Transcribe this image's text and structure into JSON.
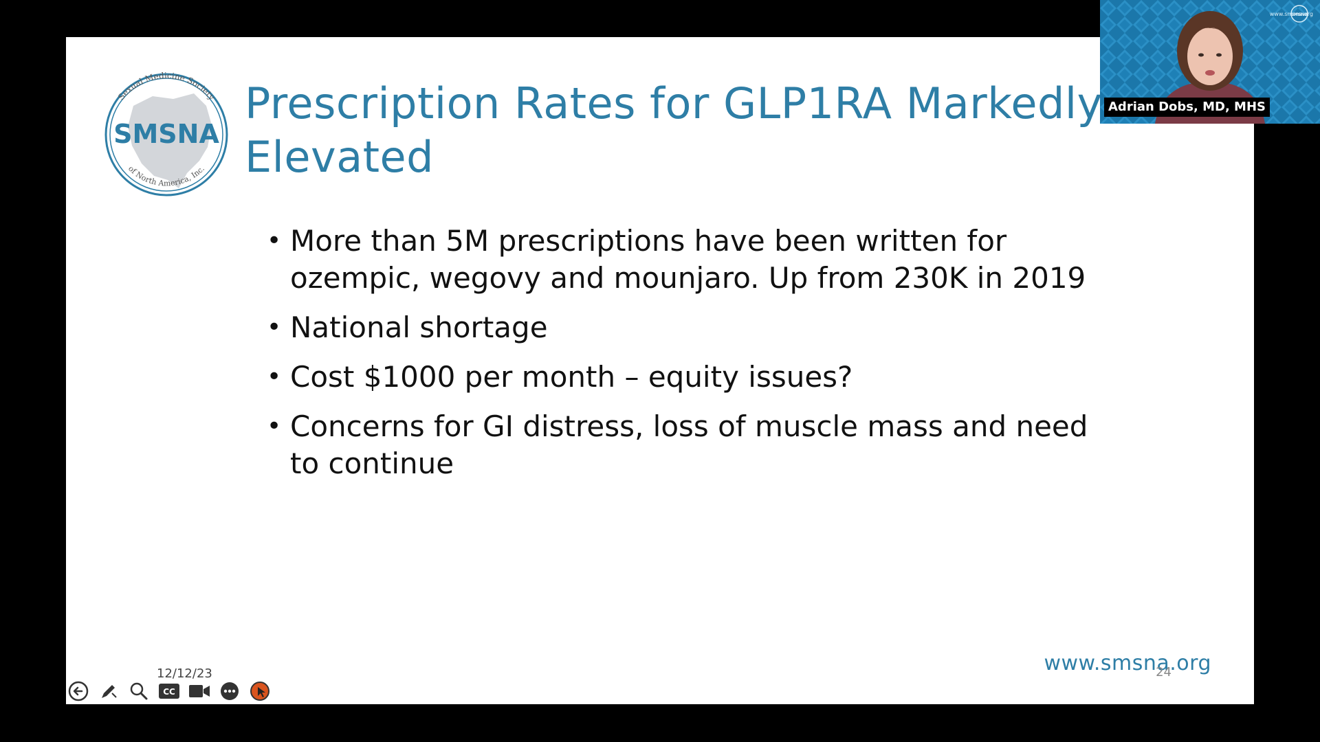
{
  "slide": {
    "title": "Prescription Rates for GLP1RA Markedly Elevated",
    "bullets": [
      "More than 5M prescriptions have been written for ozempic, wegovy and mounjaro.  Up from 230K in 2019",
      "National shortage",
      "Cost $1000 per month – equity issues?",
      "Concerns for GI distress, loss of muscle mass and need to continue"
    ],
    "footer_url": "www.smsna.org",
    "slide_number": "24",
    "date": "12/12/23"
  },
  "logo": {
    "top_text": "Sexual Medicine Society",
    "center_text": "SMSNA",
    "bottom_text": "of North America, Inc."
  },
  "video": {
    "speaker_name": "Adrian Dobs, MD, MHS",
    "tile_logo_text": "SMSNA",
    "tile_url": "www.smsna.org"
  },
  "toolbar": {
    "icons": [
      "back-icon",
      "pen-icon",
      "zoom-icon",
      "cc-icon",
      "camera-icon",
      "more-icon",
      "end-icon"
    ]
  },
  "colors": {
    "title": "#2e7ea6",
    "background": "#000000",
    "slide": "#ffffff",
    "tile_bg": "#1f7fb3",
    "end_button": "#d9541e"
  }
}
